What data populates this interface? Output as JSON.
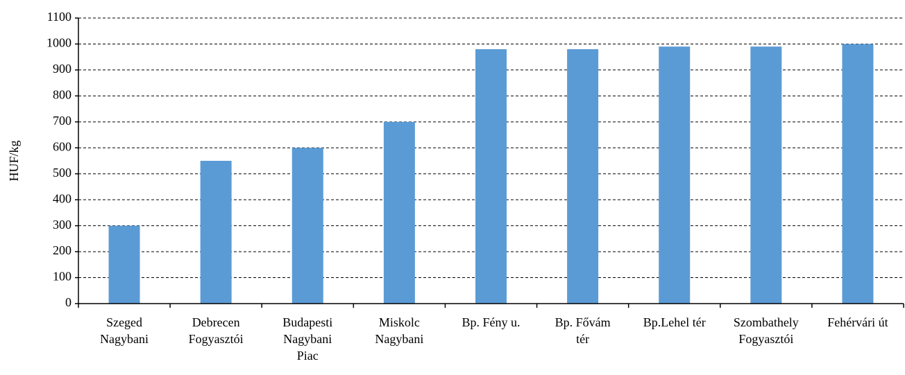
{
  "chart_data": {
    "type": "bar",
    "y_label": "HUF/kg",
    "categories": [
      [
        "Szeged",
        "Nagybani"
      ],
      [
        "Debrecen",
        "Fogyasztói"
      ],
      [
        "Budapesti",
        "Nagybani",
        "Piac"
      ],
      [
        "Miskolc",
        "Nagybani"
      ],
      [
        "Bp. Fény u."
      ],
      [
        "Bp. Fővám",
        "tér"
      ],
      [
        "Bp.Lehel tér"
      ],
      [
        "Szombathely",
        "Fogyasztói"
      ],
      [
        "Fehérvári út"
      ]
    ],
    "values": [
      300,
      550,
      600,
      700,
      980,
      980,
      990,
      990,
      1000
    ],
    "color": "#5b9bd5",
    "ylim": [
      0,
      1100
    ],
    "yticks": [
      0,
      100,
      200,
      300,
      400,
      500,
      600,
      700,
      800,
      900,
      1000,
      1100
    ],
    "grid": true
  }
}
